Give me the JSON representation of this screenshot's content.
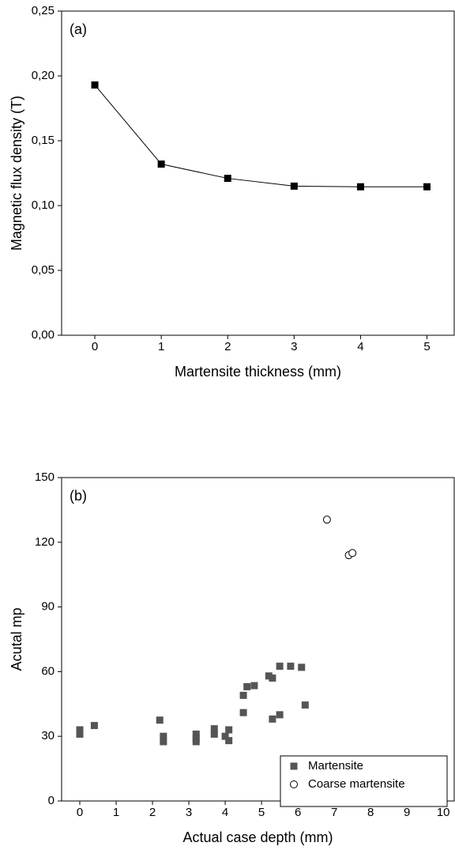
{
  "chart_data": [
    {
      "type": "line",
      "annotation": "(a)",
      "xlabel": "Martensite thickness (mm)",
      "ylabel": "Magnetic flux density (T)",
      "xlim": [
        -0.5,
        5.41
      ],
      "xticks": [
        0,
        1,
        2,
        3,
        4,
        5
      ],
      "ylim": [
        0,
        0.25
      ],
      "yticks": [
        {
          "value": 0,
          "label": "0,00"
        },
        {
          "value": 0.05,
          "label": "0,05"
        },
        {
          "value": 0.1,
          "label": "0,10"
        },
        {
          "value": 0.15,
          "label": "0,15"
        },
        {
          "value": 0.2,
          "label": "0,20"
        },
        {
          "value": 0.25,
          "label": "0,25"
        }
      ],
      "series": [
        {
          "marker": "square",
          "color": "#000000",
          "x": [
            0,
            1,
            2,
            3,
            4,
            5
          ],
          "values": [
            0.193,
            0.132,
            0.121,
            0.115,
            0.1145,
            0.1145
          ]
        }
      ]
    },
    {
      "type": "scatter",
      "annotation": "(b)",
      "xlabel": "Actual case depth (mm)",
      "ylabel": "Acutal mp",
      "xlim": [
        -0.5,
        10.3
      ],
      "xticks": [
        0,
        1,
        2,
        3,
        4,
        5,
        6,
        7,
        8,
        9,
        10
      ],
      "ylim": [
        0,
        150
      ],
      "yticks": [
        0,
        30,
        60,
        90,
        120,
        150
      ],
      "legend": "lower right",
      "series": [
        {
          "name": "Martensite",
          "marker": "square",
          "color": "#555555",
          "x": [
            0,
            0,
            0.4,
            2.2,
            2.3,
            2.3,
            3.2,
            3.2,
            3.2,
            3.7,
            3.7,
            4.0,
            4.1,
            4.1,
            4.5,
            4.5,
            4.6,
            4.8,
            5.2,
            5.3,
            5.3,
            5.5,
            5.5,
            5.8,
            6.1,
            6.2
          ],
          "values": [
            33,
            31,
            35,
            37.5,
            30,
            27.5,
            31,
            29,
            27.5,
            33.5,
            31,
            30,
            33,
            28,
            41,
            49,
            53,
            53.5,
            58,
            57,
            38,
            62.5,
            40,
            62.5,
            62,
            44.5
          ]
        },
        {
          "name": "Coarse martensite",
          "marker": "open-circle",
          "color": "#000000",
          "x": [
            6.8,
            7.4,
            7.5
          ],
          "values": [
            130.5,
            114,
            115
          ]
        }
      ]
    }
  ]
}
